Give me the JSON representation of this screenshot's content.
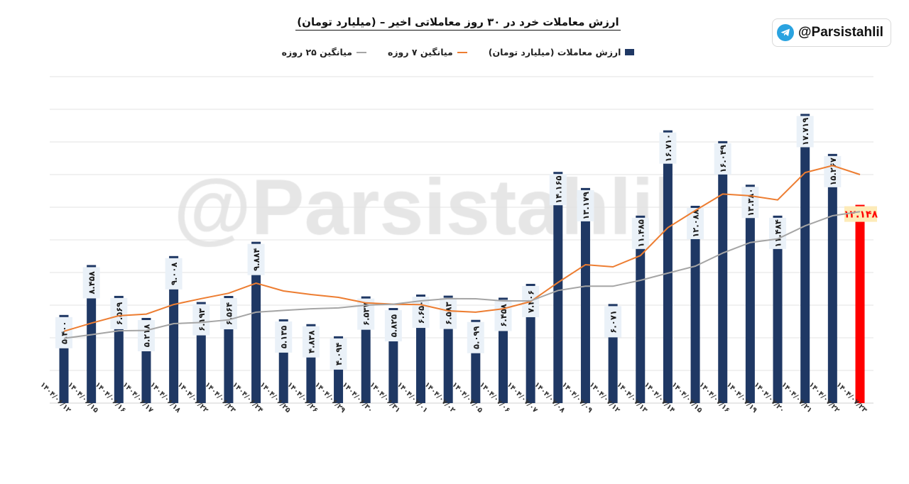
{
  "brand": {
    "handle": "@Parsistahlil",
    "icon": "telegram-icon"
  },
  "watermark": "@Parsistahlil",
  "chart_data": {
    "type": "bar",
    "title": "ارزش معاملات خرد در ۳۰ روز معاملاتی اخیر – (میلیارد تومان)",
    "legend_position": "top",
    "grid": true,
    "ylim": [
      0,
      20
    ],
    "ytick_step": 2,
    "categories": [
      "۱۴۰۴/۰۶/۱۲",
      "۱۴۰۴/۰۶/۱۵",
      "۱۴۰۴/۰۶/۱۶",
      "۱۴۰۴/۰۶/۱۷",
      "۱۴۰۴/۰۶/۱۸",
      "۱۴۰۴/۰۶/۲۲",
      "۱۴۰۴/۰۶/۲۳",
      "۱۴۰۴/۰۶/۲۴",
      "۱۴۰۴/۰۶/۲۵",
      "۱۴۰۴/۰۶/۲۶",
      "۱۴۰۴/۰۶/۲۹",
      "۱۴۰۴/۰۶/۳۰",
      "۱۴۰۴/۰۶/۳۱",
      "۱۴۰۴/۰۷/۰۱",
      "۱۴۰۴/۰۷/۰۲",
      "۱۴۰۴/۰۷/۰۵",
      "۱۴۰۴/۰۷/۰۶",
      "۱۴۰۴/۰۷/۰۷",
      "۱۴۰۴/۰۷/۰۸",
      "۱۴۰۴/۰۷/۰۹",
      "۱۴۰۴/۰۷/۱۲",
      "۱۴۰۴/۰۷/۱۳",
      "۱۴۰۴/۰۷/۱۴",
      "۱۴۰۴/۰۷/۱۵",
      "۱۴۰۴/۰۷/۱۶",
      "۱۴۰۴/۰۷/۱۹",
      "۱۴۰۴/۰۷/۲۰",
      "۱۴۰۴/۰۷/۲۱",
      "۱۴۰۴/۰۷/۲۲",
      "۱۴۰۴/۰۷/۲۳"
    ],
    "series": [
      {
        "name": "ارزش معاملات (میلیارد تومان)",
        "kind": "bar",
        "color": "#1f3864",
        "highlight_last_color": "#ff0000",
        "values": [
          5.4,
          8.458,
          6.569,
          5.218,
          9.008,
          6.193,
          6.564,
          9.884,
          5.135,
          4.838,
          4.094,
          6.537,
          5.825,
          6.65,
          6.583,
          5.099,
          6.458,
          7.306,
          14.165,
          13.179,
          6.071,
          11.485,
          16.71,
          12.088,
          16.049,
          13.38,
          11.484,
          17.719,
          15.267,
          12.148
        ]
      },
      {
        "name": "میانگین ۷ روزه",
        "kind": "line",
        "color": "#ed7d31",
        "values": [
          4.4,
          4.9,
          5.35,
          5.45,
          6.04,
          6.4,
          6.73,
          7.35,
          6.87,
          6.65,
          6.48,
          6.14,
          6.06,
          6.03,
          5.65,
          5.57,
          5.78,
          6.22,
          7.39,
          8.48,
          8.35,
          9.04,
          10.75,
          11.8,
          12.81,
          12.7,
          12.45,
          14.12,
          14.55,
          14.0
        ]
      },
      {
        "name": "میانگین ۲۵ روزه",
        "kind": "line",
        "color": "#a5a5a5",
        "values": [
          3.97,
          4.19,
          4.43,
          4.45,
          4.87,
          4.94,
          5.1,
          5.57,
          5.68,
          5.78,
          5.83,
          6.0,
          6.06,
          6.26,
          6.4,
          6.39,
          6.26,
          6.26,
          6.9,
          7.16,
          7.16,
          7.52,
          7.96,
          8.39,
          9.19,
          9.84,
          10.06,
          10.86,
          11.48,
          11.73
        ]
      }
    ]
  }
}
